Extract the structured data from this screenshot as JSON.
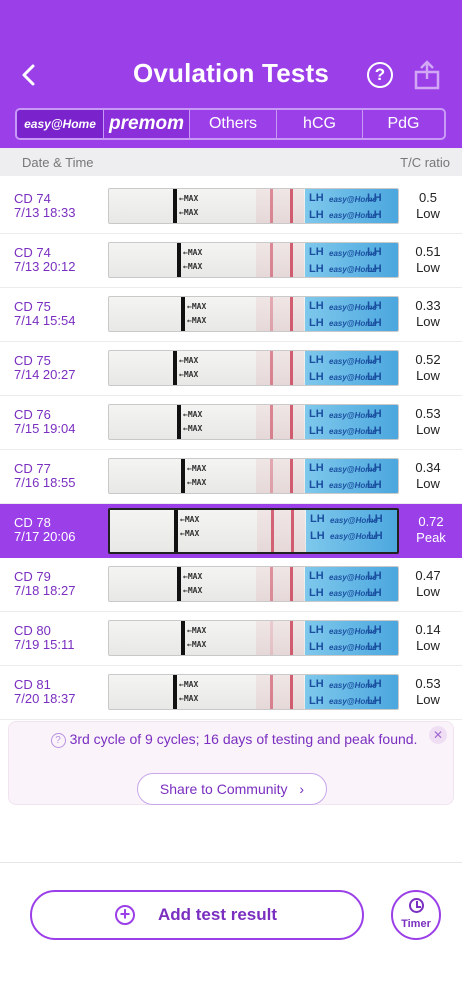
{
  "header": {
    "title": "Ovulation Tests",
    "help_label": "?",
    "back_icon": "chevron-left-icon",
    "share_icon": "share-icon"
  },
  "brand_tabs": [
    {
      "label": "easy@Home",
      "selected": true
    },
    {
      "label": "premom",
      "selected": false
    },
    {
      "label": "Others",
      "selected": false
    },
    {
      "label": "hCG",
      "selected": false
    },
    {
      "label": "PdG",
      "selected": false
    }
  ],
  "columns": {
    "left": "Date & Time",
    "right": "T/C ratio"
  },
  "strip_text": {
    "max": "MAX",
    "wrapper": "LH",
    "brand": "easy@Home"
  },
  "rows": [
    {
      "cd": "CD 74",
      "time": "7/13 18:33",
      "ratio": "0.5",
      "level": "Low",
      "t_intensity": 0.5
    },
    {
      "cd": "CD 74",
      "time": "7/13 20:12",
      "ratio": "0.51",
      "level": "Low",
      "t_intensity": 0.51
    },
    {
      "cd": "CD 75",
      "time": "7/14 15:54",
      "ratio": "0.33",
      "level": "Low",
      "t_intensity": 0.33
    },
    {
      "cd": "CD 75",
      "time": "7/14 20:27",
      "ratio": "0.52",
      "level": "Low",
      "t_intensity": 0.52
    },
    {
      "cd": "CD 76",
      "time": "7/15 19:04",
      "ratio": "0.53",
      "level": "Low",
      "t_intensity": 0.53
    },
    {
      "cd": "CD 77",
      "time": "7/16 18:55",
      "ratio": "0.34",
      "level": "Low",
      "t_intensity": 0.34
    },
    {
      "cd": "CD 78",
      "time": "7/17 20:06",
      "ratio": "0.72",
      "level": "Peak",
      "t_intensity": 0.72,
      "active": true
    },
    {
      "cd": "CD 79",
      "time": "7/18 18:27",
      "ratio": "0.47",
      "level": "Low",
      "t_intensity": 0.47
    },
    {
      "cd": "CD 80",
      "time": "7/19 15:11",
      "ratio": "0.14",
      "level": "Low",
      "t_intensity": 0.14
    },
    {
      "cd": "CD 81",
      "time": "7/20 18:37",
      "ratio": "0.53",
      "level": "Low",
      "t_intensity": 0.53
    }
  ],
  "info": {
    "message": "3rd cycle of 9 cycles; 16 days of testing and peak found.",
    "share_label": "Share to Community",
    "share_chevron": "›",
    "close_label": "✕"
  },
  "bottom": {
    "add_label": "Add test result",
    "timer_label": "Timer"
  },
  "colors": {
    "accent": "#9b3fe8",
    "accent_dark": "#7a2fc0",
    "line_red": "#c9304a"
  }
}
